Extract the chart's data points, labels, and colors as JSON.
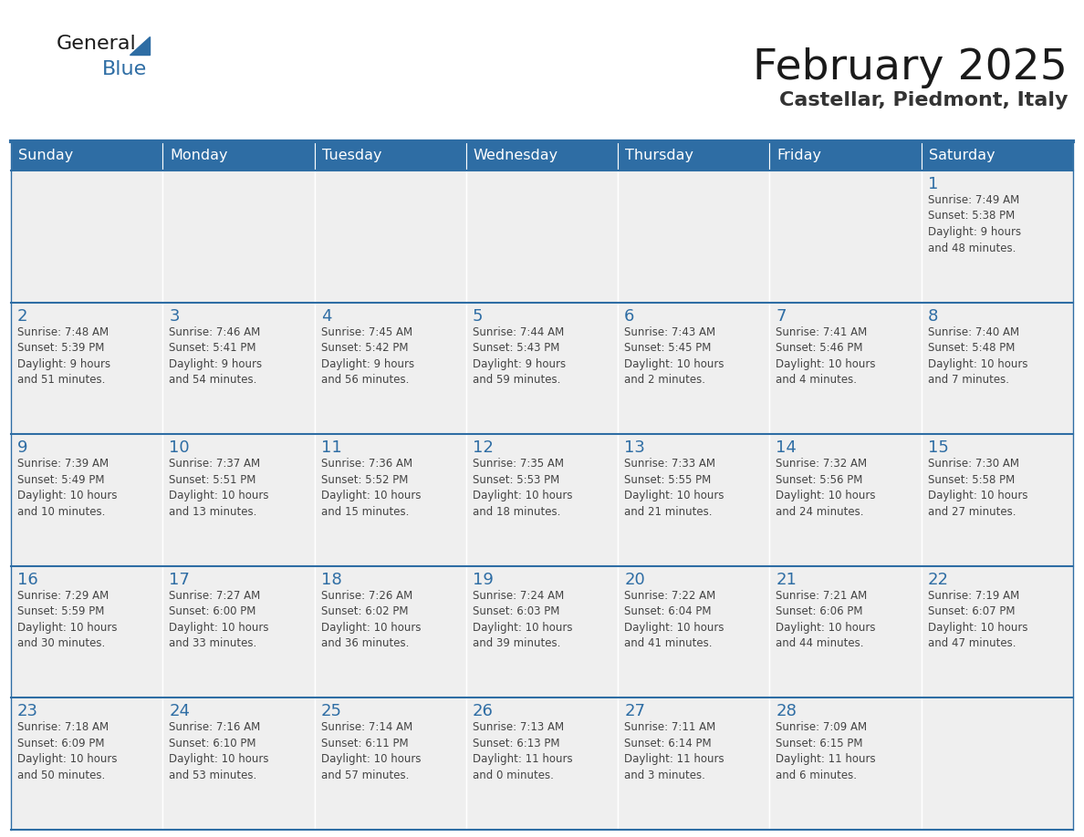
{
  "title": "February 2025",
  "subtitle": "Castellar, Piedmont, Italy",
  "header_color": "#2E6DA4",
  "header_text_color": "#FFFFFF",
  "cell_bg_color": "#EFEFEF",
  "day_number_color": "#2E6DA4",
  "text_color": "#444444",
  "border_color": "#2E6DA4",
  "days_of_week": [
    "Sunday",
    "Monday",
    "Tuesday",
    "Wednesday",
    "Thursday",
    "Friday",
    "Saturday"
  ],
  "weeks": [
    [
      {
        "day": null,
        "info": null
      },
      {
        "day": null,
        "info": null
      },
      {
        "day": null,
        "info": null
      },
      {
        "day": null,
        "info": null
      },
      {
        "day": null,
        "info": null
      },
      {
        "day": null,
        "info": null
      },
      {
        "day": 1,
        "info": "Sunrise: 7:49 AM\nSunset: 5:38 PM\nDaylight: 9 hours\nand 48 minutes."
      }
    ],
    [
      {
        "day": 2,
        "info": "Sunrise: 7:48 AM\nSunset: 5:39 PM\nDaylight: 9 hours\nand 51 minutes."
      },
      {
        "day": 3,
        "info": "Sunrise: 7:46 AM\nSunset: 5:41 PM\nDaylight: 9 hours\nand 54 minutes."
      },
      {
        "day": 4,
        "info": "Sunrise: 7:45 AM\nSunset: 5:42 PM\nDaylight: 9 hours\nand 56 minutes."
      },
      {
        "day": 5,
        "info": "Sunrise: 7:44 AM\nSunset: 5:43 PM\nDaylight: 9 hours\nand 59 minutes."
      },
      {
        "day": 6,
        "info": "Sunrise: 7:43 AM\nSunset: 5:45 PM\nDaylight: 10 hours\nand 2 minutes."
      },
      {
        "day": 7,
        "info": "Sunrise: 7:41 AM\nSunset: 5:46 PM\nDaylight: 10 hours\nand 4 minutes."
      },
      {
        "day": 8,
        "info": "Sunrise: 7:40 AM\nSunset: 5:48 PM\nDaylight: 10 hours\nand 7 minutes."
      }
    ],
    [
      {
        "day": 9,
        "info": "Sunrise: 7:39 AM\nSunset: 5:49 PM\nDaylight: 10 hours\nand 10 minutes."
      },
      {
        "day": 10,
        "info": "Sunrise: 7:37 AM\nSunset: 5:51 PM\nDaylight: 10 hours\nand 13 minutes."
      },
      {
        "day": 11,
        "info": "Sunrise: 7:36 AM\nSunset: 5:52 PM\nDaylight: 10 hours\nand 15 minutes."
      },
      {
        "day": 12,
        "info": "Sunrise: 7:35 AM\nSunset: 5:53 PM\nDaylight: 10 hours\nand 18 minutes."
      },
      {
        "day": 13,
        "info": "Sunrise: 7:33 AM\nSunset: 5:55 PM\nDaylight: 10 hours\nand 21 minutes."
      },
      {
        "day": 14,
        "info": "Sunrise: 7:32 AM\nSunset: 5:56 PM\nDaylight: 10 hours\nand 24 minutes."
      },
      {
        "day": 15,
        "info": "Sunrise: 7:30 AM\nSunset: 5:58 PM\nDaylight: 10 hours\nand 27 minutes."
      }
    ],
    [
      {
        "day": 16,
        "info": "Sunrise: 7:29 AM\nSunset: 5:59 PM\nDaylight: 10 hours\nand 30 minutes."
      },
      {
        "day": 17,
        "info": "Sunrise: 7:27 AM\nSunset: 6:00 PM\nDaylight: 10 hours\nand 33 minutes."
      },
      {
        "day": 18,
        "info": "Sunrise: 7:26 AM\nSunset: 6:02 PM\nDaylight: 10 hours\nand 36 minutes."
      },
      {
        "day": 19,
        "info": "Sunrise: 7:24 AM\nSunset: 6:03 PM\nDaylight: 10 hours\nand 39 minutes."
      },
      {
        "day": 20,
        "info": "Sunrise: 7:22 AM\nSunset: 6:04 PM\nDaylight: 10 hours\nand 41 minutes."
      },
      {
        "day": 21,
        "info": "Sunrise: 7:21 AM\nSunset: 6:06 PM\nDaylight: 10 hours\nand 44 minutes."
      },
      {
        "day": 22,
        "info": "Sunrise: 7:19 AM\nSunset: 6:07 PM\nDaylight: 10 hours\nand 47 minutes."
      }
    ],
    [
      {
        "day": 23,
        "info": "Sunrise: 7:18 AM\nSunset: 6:09 PM\nDaylight: 10 hours\nand 50 minutes."
      },
      {
        "day": 24,
        "info": "Sunrise: 7:16 AM\nSunset: 6:10 PM\nDaylight: 10 hours\nand 53 minutes."
      },
      {
        "day": 25,
        "info": "Sunrise: 7:14 AM\nSunset: 6:11 PM\nDaylight: 10 hours\nand 57 minutes."
      },
      {
        "day": 26,
        "info": "Sunrise: 7:13 AM\nSunset: 6:13 PM\nDaylight: 11 hours\nand 0 minutes."
      },
      {
        "day": 27,
        "info": "Sunrise: 7:11 AM\nSunset: 6:14 PM\nDaylight: 11 hours\nand 3 minutes."
      },
      {
        "day": 28,
        "info": "Sunrise: 7:09 AM\nSunset: 6:15 PM\nDaylight: 11 hours\nand 6 minutes."
      },
      {
        "day": null,
        "info": null
      }
    ]
  ]
}
